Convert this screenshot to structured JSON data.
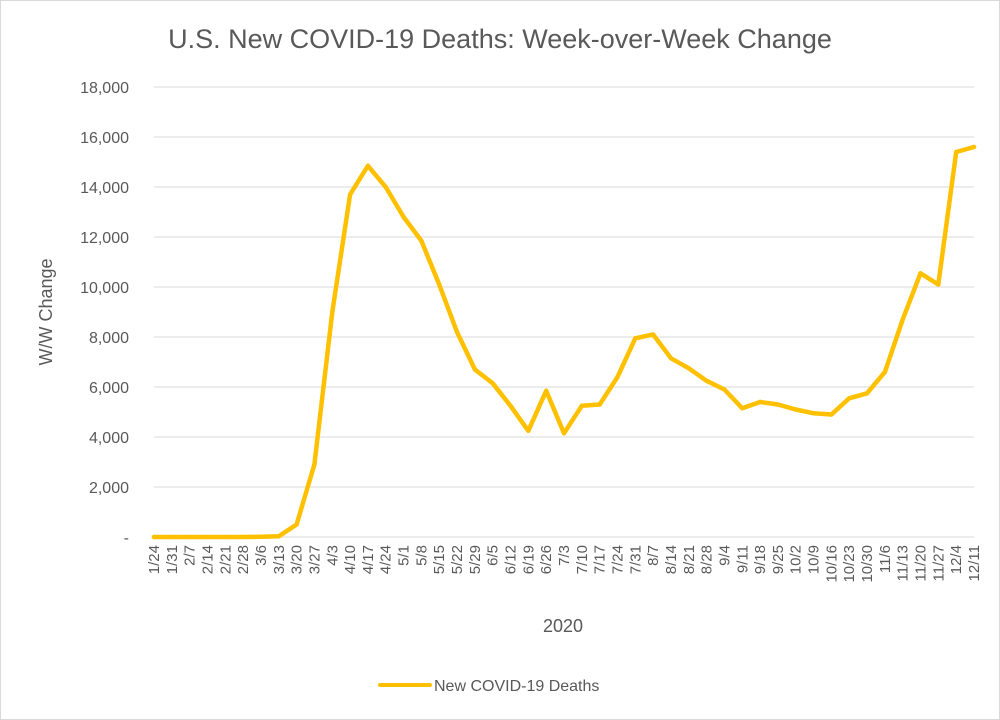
{
  "chart_data": {
    "type": "line",
    "title": "U.S. New COVID-19 Deaths: Week-over-Week Change",
    "xlabel": "2020",
    "ylabel": "W/W Change",
    "ylim": [
      0,
      18000
    ],
    "yticks": [
      0,
      2000,
      4000,
      6000,
      8000,
      10000,
      12000,
      14000,
      16000,
      18000
    ],
    "ytick_labels": [
      "-",
      "2,000",
      "4,000",
      "6,000",
      "8,000",
      "10,000",
      "12,000",
      "14,000",
      "16,000",
      "18,000"
    ],
    "grid": true,
    "legend_position": "bottom",
    "categories": [
      "1/24",
      "1/31",
      "2/7",
      "2/14",
      "2/21",
      "2/28",
      "3/6",
      "3/13",
      "3/20",
      "3/27",
      "4/3",
      "4/10",
      "4/17",
      "4/24",
      "5/1",
      "5/8",
      "5/15",
      "5/22",
      "5/29",
      "6/5",
      "6/12",
      "6/19",
      "6/26",
      "7/3",
      "7/10",
      "7/17",
      "7/24",
      "7/31",
      "8/7",
      "8/14",
      "8/21",
      "8/28",
      "9/4",
      "9/11",
      "9/18",
      "9/25",
      "10/2",
      "10/9",
      "10/16",
      "10/23",
      "10/30",
      "11/6",
      "11/13",
      "11/20",
      "11/27",
      "12/4",
      "12/11"
    ],
    "series": [
      {
        "name": "New COVID-19 Deaths",
        "color": "#ffc000",
        "values": [
          0,
          0,
          0,
          0,
          0,
          0,
          10,
          30,
          500,
          2900,
          9000,
          13700,
          14850,
          14000,
          12800,
          11850,
          10100,
          8200,
          6700,
          6150,
          5250,
          4250,
          5850,
          4150,
          5250,
          5300,
          6400,
          7950,
          8100,
          7150,
          6750,
          6250,
          5900,
          5150,
          5400,
          5300,
          5100,
          4950,
          4900,
          5550,
          5750,
          6600,
          8700,
          10550,
          10100,
          15400,
          15600
        ]
      }
    ]
  }
}
